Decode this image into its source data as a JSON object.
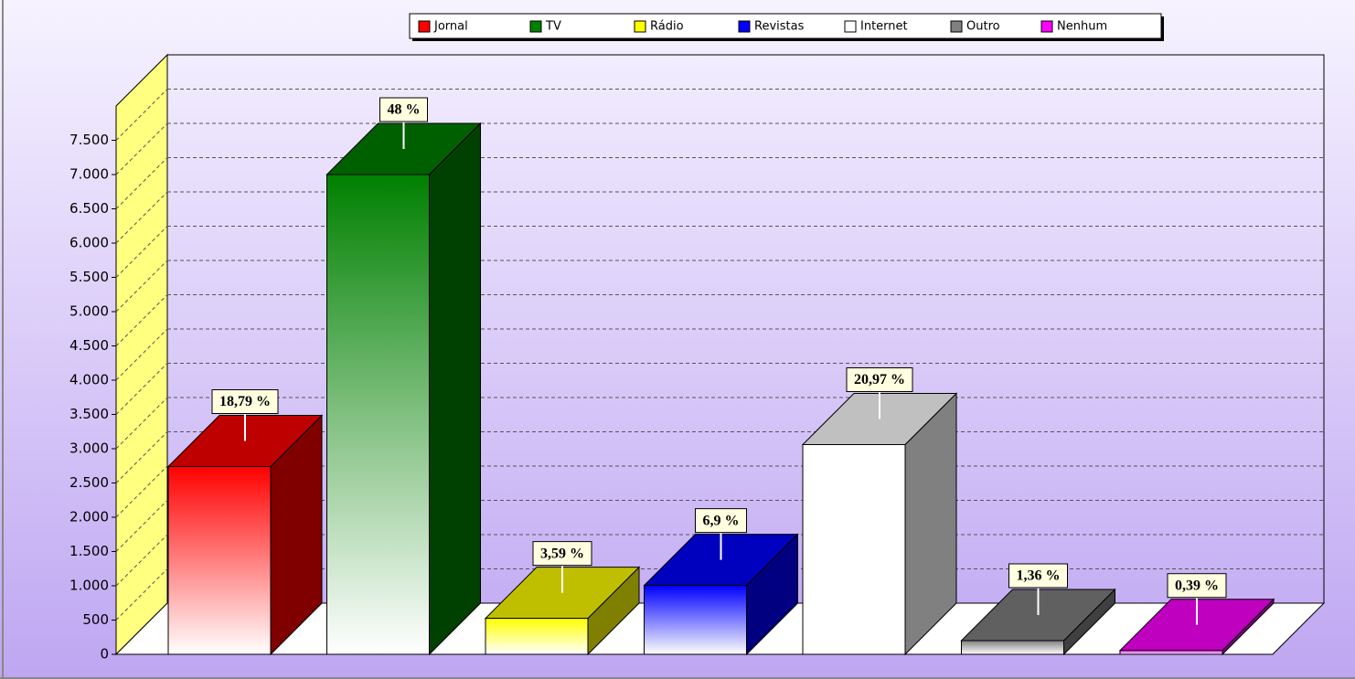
{
  "chart_data": {
    "type": "bar3d",
    "categories": [
      "Jornal",
      "TV",
      "Rádio",
      "Revistas",
      "Internet",
      "Outro",
      "Nenhum"
    ],
    "values": [
      2740,
      7000,
      525,
      1005,
      3060,
      200,
      57
    ],
    "colors": [
      "#ff0000",
      "#008000",
      "#ffff00",
      "#0000ff",
      "#ffffff",
      "#808080",
      "#ff00ff"
    ],
    "percentages": [
      18.79,
      48,
      3.59,
      6.9,
      20.97,
      1.36,
      0.39
    ],
    "percentage_labels": [
      "18,79 %",
      "48 %",
      "3,59 %",
      "6,9 %",
      "20,97 %",
      "1,36 %",
      "0,39 %"
    ],
    "ylim": [
      0,
      8000
    ],
    "yticks": [
      0,
      500,
      {
        "value": 1000,
        "label": "1.000"
      },
      {
        "value": 1500,
        "label": "1.500"
      },
      {
        "value": 2000,
        "label": "2.000"
      },
      {
        "value": 2500,
        "label": "2.500"
      },
      {
        "value": 3000,
        "label": "3.000"
      },
      {
        "value": 3500,
        "label": "3.500"
      },
      {
        "value": 4000,
        "label": "4.000"
      },
      {
        "value": 4500,
        "label": "4.500"
      },
      {
        "value": 5000,
        "label": "5.000"
      },
      {
        "value": 5500,
        "label": "5.500"
      },
      {
        "value": 6000,
        "label": "6.000"
      },
      {
        "value": 6500,
        "label": "6.500"
      },
      {
        "value": 7000,
        "label": "7.000"
      },
      {
        "value": 7500,
        "label": "7.500"
      }
    ],
    "grid": true,
    "legend": "top"
  }
}
